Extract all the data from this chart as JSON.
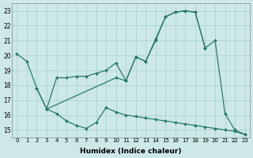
{
  "color": "#2a7a6a",
  "bg_color": "#cce8e8",
  "grid_color": "#aacece",
  "xlabel": "Humidex (Indice chaleur)",
  "ylim": [
    14.5,
    23.5
  ],
  "xlim": [
    -0.5,
    23.5
  ],
  "yticks": [
    15,
    16,
    17,
    18,
    19,
    20,
    21,
    22,
    23
  ],
  "xticks": [
    0,
    1,
    2,
    3,
    4,
    5,
    6,
    7,
    8,
    9,
    10,
    11,
    12,
    13,
    14,
    15,
    16,
    17,
    18,
    19,
    20,
    21,
    22,
    23
  ],
  "line1_x": [
    0,
    1,
    2,
    3,
    10,
    11,
    12,
    13,
    14,
    15,
    16,
    17,
    18,
    19,
    20,
    21,
    22,
    23
  ],
  "line1_y": [
    20.1,
    19.6,
    17.8,
    16.4,
    18.5,
    18.3,
    19.9,
    19.6,
    21.1,
    22.6,
    22.9,
    23.0,
    22.9,
    20.5,
    21.0,
    16.1,
    15.0,
    14.7
  ],
  "line2_x": [
    2,
    3,
    4,
    5,
    6,
    7,
    8,
    9,
    10,
    11,
    12,
    13,
    14,
    15,
    16,
    17,
    18,
    19
  ],
  "line2_y": [
    17.8,
    16.4,
    18.5,
    18.5,
    18.6,
    18.6,
    18.8,
    19.0,
    19.5,
    18.3,
    19.9,
    19.6,
    21.0,
    22.6,
    22.9,
    23.0,
    22.9,
    20.5
  ],
  "line3_x": [
    3,
    4,
    5,
    6,
    7,
    8,
    9,
    10,
    11,
    12,
    13,
    14,
    15,
    16,
    17,
    18,
    19,
    20,
    21,
    22,
    23
  ],
  "line3_y": [
    16.4,
    16.1,
    15.6,
    15.3,
    15.1,
    15.5,
    16.5,
    16.2,
    16.0,
    15.9,
    15.8,
    15.7,
    15.6,
    15.5,
    15.4,
    15.3,
    15.2,
    15.1,
    15.0,
    14.9,
    14.7
  ]
}
